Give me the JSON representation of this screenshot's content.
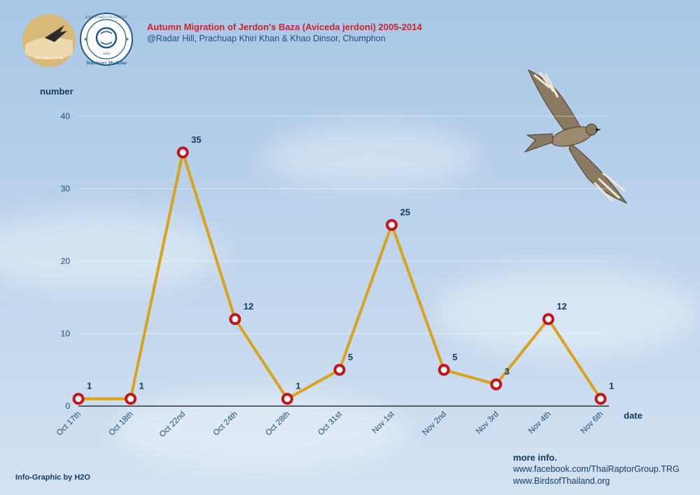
{
  "header": {
    "title": "Autumn Migration of Jerdon's Baza (Aviceda jerdoni) 2005-2014",
    "subtitle": "@Radar Hill, Prachuap Khiri Khan & Khao Dinsor, Chumphon"
  },
  "logos": {
    "left": "Thai Raptor Group",
    "right_top": "KASETSART UNIVERSITY",
    "right_bottom": "Veterinary Medicine",
    "right_year": "1943"
  },
  "chart_data": {
    "type": "line",
    "title": "Autumn Migration of Jerdon's Baza (Aviceda jerdoni) 2005-2014",
    "xlabel": "date",
    "ylabel": "number",
    "categories": [
      "Oct 17th",
      "Oct 18th",
      "Oct 22nd",
      "Oct 24th",
      "Oct 28th",
      "Oct 31st",
      "Nov 1st",
      "Nov 2nd",
      "Nov 3rd",
      "Nov 4th",
      "Nov 6th"
    ],
    "values": [
      1,
      1,
      35,
      12,
      1,
      5,
      25,
      5,
      3,
      12,
      1
    ],
    "ylim": [
      0,
      40
    ],
    "yticks": [
      0,
      10,
      20,
      30,
      40
    ],
    "grid": true,
    "line_color": "#d9a21b",
    "marker_color": "#c0161c"
  },
  "footer": {
    "credit": "Info-Graphic by H2O",
    "more_info_heading": "more info.",
    "links": [
      "www.facebook.com/ThaiRaptorGroup.TRG",
      "www.BirdsofThailand.org"
    ]
  }
}
